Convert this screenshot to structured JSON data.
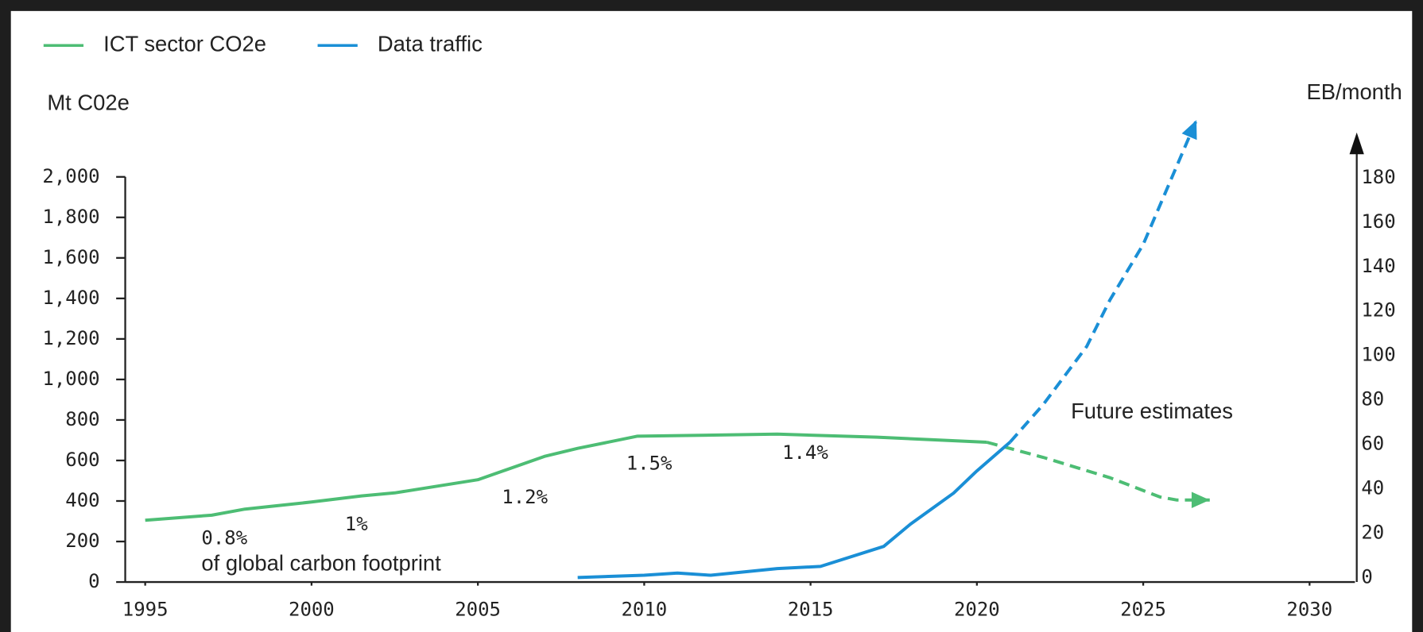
{
  "chart_data": {
    "type": "line",
    "y_label": "Mt C02e",
    "y2_label": "EB/month",
    "xlim": [
      1995,
      2030
    ],
    "xticks": [
      1995,
      2000,
      2005,
      2010,
      2015,
      2020,
      2025,
      2030
    ],
    "ylim": [
      0,
      2000
    ],
    "yticks": [
      0,
      200,
      400,
      600,
      800,
      {
        "value": 1000,
        "label": "1,000"
      },
      {
        "value": 1200,
        "label": "1,200"
      },
      {
        "value": 1400,
        "label": "1,400"
      },
      {
        "value": 1600,
        "label": "1,600"
      },
      {
        "value": 1800,
        "label": "1,800"
      },
      {
        "value": 2000,
        "label": "2,000"
      }
    ],
    "y2lim": [
      0,
      200
    ],
    "y2ticks": [
      0,
      20,
      40,
      60,
      80,
      100,
      120,
      140,
      160,
      180
    ],
    "legend": "top-left",
    "series": [
      {
        "name": "ICT sector CO2e",
        "color": "#4dbd74",
        "estimate_from": 2020.3,
        "x": [
          1995,
          1997,
          1998,
          2000,
          2001.5,
          2002.5,
          2005,
          2007,
          2008,
          2009.8,
          2014,
          2017,
          2019,
          2020.3,
          2022,
          2024,
          2025.5,
          2026,
          2027
        ],
        "values": [
          305,
          330,
          360,
          395,
          425,
          440,
          505,
          620,
          660,
          720,
          730,
          715,
          700,
          690,
          615,
          515,
          420,
          405,
          405
        ]
      },
      {
        "name": "Data traffic",
        "color": "#1a8fd6",
        "axis": "y2",
        "estimate_from": 2021,
        "x": [
          2008,
          2010,
          2011,
          2012,
          2014,
          2015.3,
          2017.2,
          2018,
          2019.3,
          2020,
          2021,
          2022,
          2023,
          2023.3,
          2024,
          2025,
          2026.6
        ],
        "values": [
          0,
          1,
          2,
          1,
          4,
          5,
          14,
          24,
          38,
          48,
          61,
          78,
          98,
          104,
          125,
          150,
          206
        ]
      }
    ],
    "annotations": [
      "0.8%",
      "of global carbon footprint",
      "1%",
      "1.2%",
      "1.5%",
      "1.4%",
      "Future estimates"
    ]
  }
}
